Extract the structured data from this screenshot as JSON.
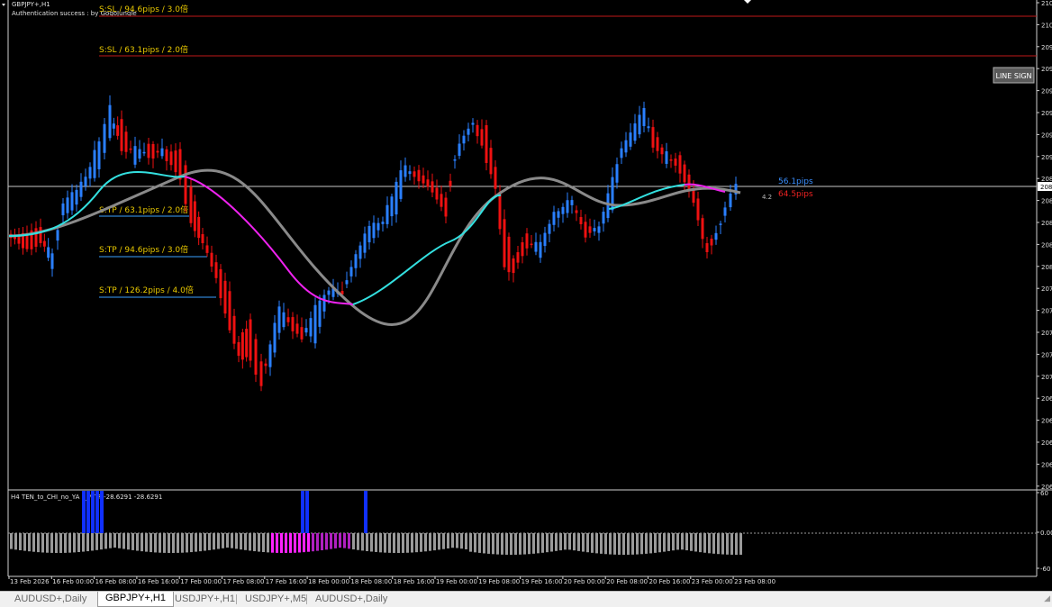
{
  "window": {
    "symbol_title": "GBPJPY+,H1",
    "auth_text": "Authentication success : by GogoJungle"
  },
  "levels": {
    "sl_3": "S:SL / 94.6pips / 3.0倍",
    "sl_2": "S:SL / 63.1pips / 2.0倍",
    "tp_2": "S:TP / 63.1pips / 2.0倍",
    "tp_3": "S:TP / 94.6pips / 3.0倍",
    "tp_4": "S:TP / 126.2pips / 4.0倍"
  },
  "pips_info": {
    "up": "56.1pips",
    "down": "64.5pips",
    "small_value": "4.2"
  },
  "line_sign_button": "LINE SIGN",
  "price_axis_labels": [
    "210",
    "210",
    "209",
    "209",
    "209",
    "209",
    "209",
    "209",
    "208",
    "208",
    "208",
    "208",
    "208",
    "207",
    "207",
    "207",
    "207",
    "207",
    "206",
    "206",
    "206",
    "206",
    "206"
  ],
  "current_price_label": "208",
  "indicator": {
    "title": "H4  TEN_to_CHI_no_YA 1_MTF  -28.6291 -28.6291",
    "axis": [
      "60",
      "0.00",
      "-60"
    ]
  },
  "time_labels": [
    "13 Feb 2026",
    "16 Feb 00:00",
    "16 Feb 08:00",
    "16 Feb 16:00",
    "17 Feb 00:00",
    "17 Feb 08:00",
    "17 Feb 16:00",
    "18 Feb 00:00",
    "18 Feb 08:00",
    "18 Feb 16:00",
    "19 Feb 00:00",
    "19 Feb 08:00",
    "19 Feb 16:00",
    "20 Feb 00:00",
    "20 Feb 08:00",
    "20 Feb 16:00",
    "23 Feb 00:00",
    "23 Feb 08:00"
  ],
  "tabs": [
    "AUDUSD+,Daily",
    "GBPJPY+,H1",
    "USDJPY+,H1",
    "USDJPY+,M5",
    "AUDUSD+,Daily"
  ],
  "active_tab_index": 1,
  "colors": {
    "bull": "#2a7fff",
    "bear": "#ee1111",
    "ma_cyan": "#33e0e0",
    "ma_magenta": "#ee22ee",
    "sl_line": "#c01818",
    "tp_line": "#3aa0ff",
    "level_text": "#e8c800",
    "hist_gray": "#9a9a9a",
    "hist_magenta": "#ff22ff",
    "hist_purple": "#b020c0",
    "hist_blue": "#1030ff"
  }
}
